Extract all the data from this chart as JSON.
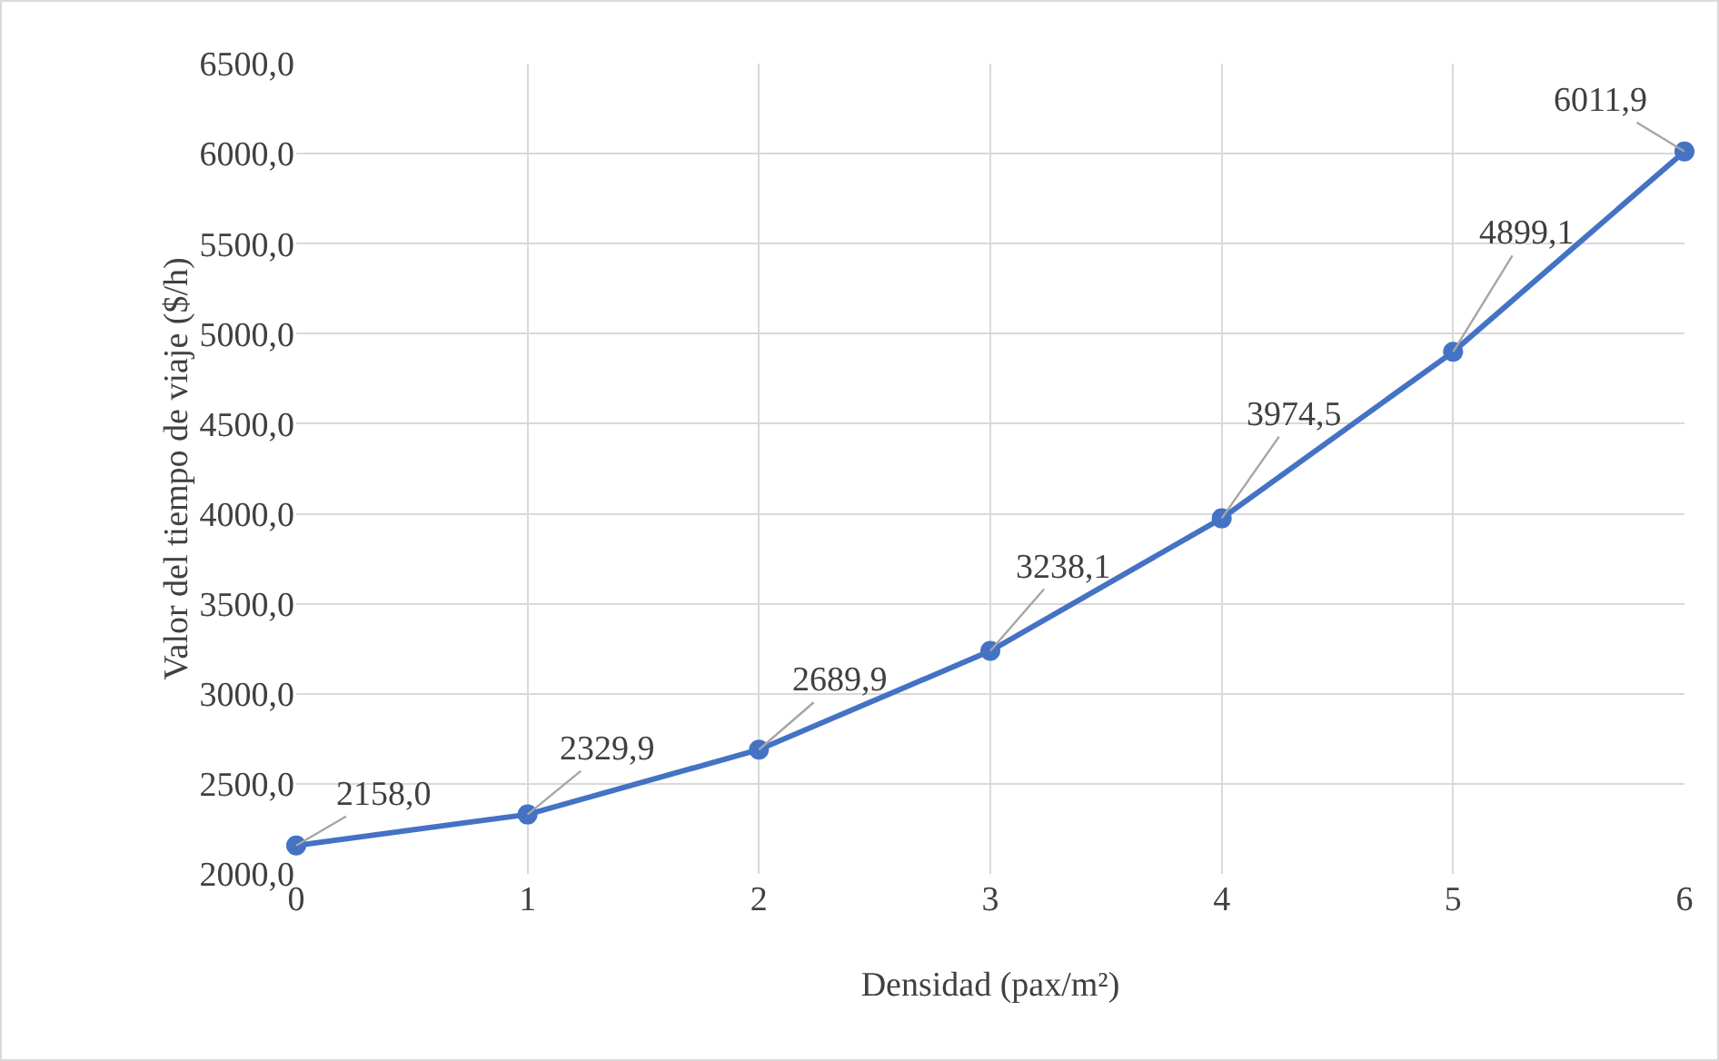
{
  "chart_data": {
    "type": "line",
    "xlabel": "Densidad (pax/m²)",
    "ylabel": "Valor del tiempo de viaje ($/h)",
    "x": [
      0,
      1,
      2,
      3,
      4,
      5,
      6
    ],
    "series": [
      {
        "color": "#4472c4",
        "values": [
          2158.0,
          2329.9,
          2689.9,
          3238.1,
          3974.5,
          4899.1,
          6011.9
        ],
        "value_labels": [
          "2158,0",
          "2329,9",
          "2689,9",
          "3238,1",
          "3974,5",
          "4899,1",
          "6011,9"
        ]
      }
    ],
    "xlim": [
      0,
      6
    ],
    "xticks": [
      0,
      1,
      2,
      3,
      4,
      5,
      6
    ],
    "ylim": [
      2000,
      6500
    ],
    "yticks": [
      {
        "value": 2000,
        "label": "2000,0"
      },
      {
        "value": 2500,
        "label": "2500,0"
      },
      {
        "value": 3000,
        "label": "3000,0"
      },
      {
        "value": 3500,
        "label": "3500,0"
      },
      {
        "value": 4000,
        "label": "4000,0"
      },
      {
        "value": 4500,
        "label": "4500,0"
      },
      {
        "value": 5000,
        "label": "5000,0"
      },
      {
        "value": 5500,
        "label": "5500,0"
      },
      {
        "value": 6000,
        "label": "6000,0"
      },
      {
        "value": 6500,
        "label": "6500,0"
      }
    ],
    "grid": true,
    "marker": "circle",
    "line_style": "solid",
    "legend": false
  }
}
